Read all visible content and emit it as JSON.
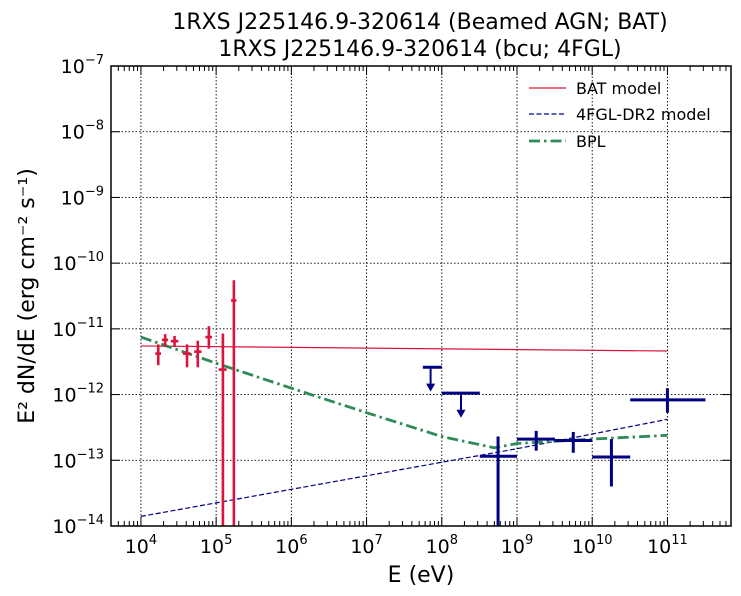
{
  "chart_data": {
    "type": "scatter",
    "title_lines": [
      "1RXS J225146.9-320614 (Beamed AGN; BAT)",
      "1RXS J225146.9-320614 (bcu; 4FGL)"
    ],
    "xlabel": "E (eV)",
    "ylabel": "E² dN/dE (erg cm⁻² s⁻¹)",
    "x_scale": "log",
    "y_scale": "log",
    "xlim": [
      4000,
      700000000000
    ],
    "ylim": [
      1e-14,
      1e-07
    ],
    "grid": true,
    "legend_position": "top-right",
    "x_ticks": [
      {
        "base": "10",
        "exp": "4",
        "value": 10000
      },
      {
        "base": "10",
        "exp": "5",
        "value": 100000
      },
      {
        "base": "10",
        "exp": "6",
        "value": 1000000
      },
      {
        "base": "10",
        "exp": "7",
        "value": 10000000
      },
      {
        "base": "10",
        "exp": "8",
        "value": 100000000
      },
      {
        "base": "10",
        "exp": "9",
        "value": 1000000000
      },
      {
        "base": "10",
        "exp": "10",
        "value": 10000000000
      },
      {
        "base": "10",
        "exp": "11",
        "value": 100000000000
      }
    ],
    "y_ticks": [
      {
        "base": "10",
        "exp": "−14",
        "value": 1e-14
      },
      {
        "base": "10",
        "exp": "−13",
        "value": 1e-13
      },
      {
        "base": "10",
        "exp": "−12",
        "value": 1e-12
      },
      {
        "base": "10",
        "exp": "−11",
        "value": 1e-11
      },
      {
        "base": "10",
        "exp": "−10",
        "value": 1e-10
      },
      {
        "base": "10",
        "exp": "−9",
        "value": 1e-09
      },
      {
        "base": "10",
        "exp": "−8",
        "value": 1e-08
      },
      {
        "base": "10",
        "exp": "−7",
        "value": 1e-07
      }
    ],
    "series": [
      {
        "name": "BAT model",
        "kind": "line",
        "color": "#dc143c",
        "dash": "solid",
        "points": [
          [
            10000,
            5.5e-12
          ],
          [
            100000000000,
            4.6e-12
          ]
        ]
      },
      {
        "name": "4FGL-DR2 model",
        "kind": "line",
        "color": "#00008b",
        "dash": "dashed",
        "points": [
          [
            10000,
            1.4e-14
          ],
          [
            1000000000,
            1.5e-13
          ],
          [
            100000000000,
            4.2e-13
          ]
        ]
      },
      {
        "name": "BPL",
        "kind": "line",
        "color": "#2e8b57",
        "dash": "dashdot",
        "points": [
          [
            10000,
            7.5e-12
          ],
          [
            100000,
            3e-12
          ],
          [
            1000000,
            1.25e-12
          ],
          [
            10000000,
            5.3e-13
          ],
          [
            100000000,
            2.3e-13
          ],
          [
            500000000,
            1.55e-13
          ],
          [
            1000000000,
            1.8e-13
          ],
          [
            10000000000,
            2.1e-13
          ],
          [
            100000000000,
            2.4e-13
          ]
        ]
      }
    ],
    "bat_points": {
      "color": "#dc143c",
      "points": [
        {
          "x": 17000,
          "y": 4.2e-12,
          "xerr": [
            15500,
            18500
          ],
          "yerr": [
            2.8e-12,
            5.8e-12
          ]
        },
        {
          "x": 21000,
          "y": 6.8e-12,
          "xerr": [
            19000,
            23000
          ],
          "yerr": [
            5.3e-12,
            8.3e-12
          ]
        },
        {
          "x": 28000,
          "y": 6.5e-12,
          "xerr": [
            25000,
            31500
          ],
          "yerr": [
            5.3e-12,
            7.8e-12
          ]
        },
        {
          "x": 41000,
          "y": 4.2e-12,
          "xerr": [
            36000,
            46000
          ],
          "yerr": [
            2.6e-12,
            5.8e-12
          ]
        },
        {
          "x": 57000,
          "y": 4.5e-12,
          "xerr": [
            51000,
            64000
          ],
          "yerr": [
            2.6e-12,
            6.6e-12
          ]
        },
        {
          "x": 80000,
          "y": 7.5e-12,
          "xerr": [
            72000,
            88000
          ],
          "yerr": [
            5e-12,
            1.1e-11
          ]
        },
        {
          "x": 123000,
          "y": 2.4e-12,
          "xerr": [
            108000,
            138000
          ],
          "yerr": [
            1e-14,
            8.5e-12
          ]
        },
        {
          "x": 172000,
          "y": 2.7e-11,
          "xerr": [
            158000,
            186000
          ],
          "yerr": [
            1e-14,
            5.5e-11
          ]
        }
      ]
    },
    "fermi_points": {
      "color": "#000080",
      "points": [
        {
          "x": 560000000,
          "y": 1.15e-13,
          "xerr": [
            320000000,
            1000000000
          ],
          "yerr": [
            1e-14,
            2.3e-13
          ]
        },
        {
          "x": 1800000000,
          "y": 2.1e-13,
          "xerr": [
            1000000000,
            3200000000
          ],
          "yerr": [
            1.4e-13,
            2.8e-13
          ]
        },
        {
          "x": 5600000000,
          "y": 2e-13,
          "xerr": [
            3200000000,
            10000000000
          ],
          "yerr": [
            1.3e-13,
            2.7e-13
          ]
        },
        {
          "x": 18000000000,
          "y": 1.12e-13,
          "xerr": [
            10000000000,
            32000000000
          ],
          "yerr": [
            4e-14,
            2.1e-13
          ]
        },
        {
          "x": 100000000000,
          "y": 8.3e-13,
          "xerr": [
            32000000000,
            320000000000
          ],
          "yerr": [
            5.3e-13,
            1.25e-12
          ]
        }
      ],
      "upper_limits": [
        {
          "x": 71000000,
          "y": 2.6e-12,
          "xerr": [
            56000000,
            100000000
          ],
          "arrow_to": 1.15e-12
        },
        {
          "x": 180000000,
          "y": 1.05e-12,
          "xerr": [
            100000000,
            320000000
          ],
          "arrow_to": 4.6e-13
        }
      ]
    }
  }
}
